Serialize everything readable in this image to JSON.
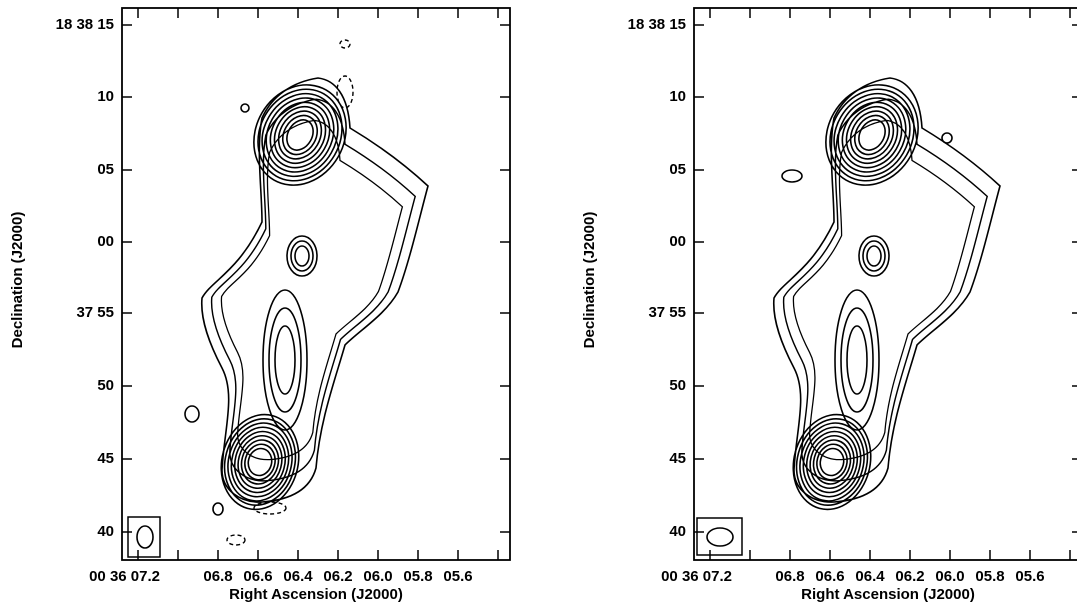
{
  "panels": [
    {
      "y_label": "Declination (J2000)",
      "x_label": "Right Ascension (J2000)",
      "yticks": [
        "18 38 15",
        "10",
        "05",
        "00",
        "37 55",
        "50",
        "45",
        "40"
      ],
      "xticks": [
        "00 36 07.2",
        "06.8",
        "06.6",
        "06.4",
        "06.2",
        "06.0",
        "05.8",
        "05.6"
      ]
    },
    {
      "y_label": "Declination (J2000)",
      "x_label": "Right Ascension (J2000)",
      "yticks": [
        "18 38 15",
        "10",
        "05",
        "00",
        "37 55",
        "50",
        "45",
        "40"
      ],
      "xticks": [
        "00 36 07.2",
        "06.8",
        "06.6",
        "06.4",
        "06.2",
        "06.0",
        "05.8",
        "05.6"
      ]
    }
  ]
}
